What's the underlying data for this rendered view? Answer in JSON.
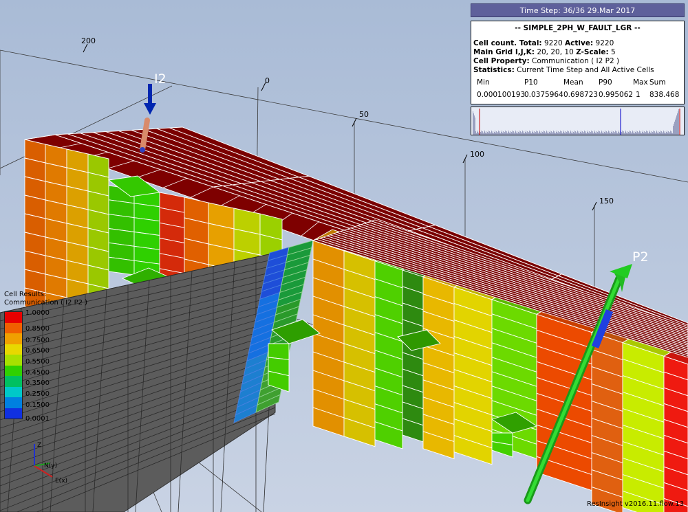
{
  "window": {
    "background_top": "#a9bbd6",
    "background_bottom": "#c9d3e4"
  },
  "axis_ticks": [
    "200",
    "0",
    "50",
    "100",
    "150"
  ],
  "wells": {
    "injector": "I2",
    "producer": "P2"
  },
  "timestep_label": "Time Step: 36/36 29.Mar 2017",
  "info": {
    "case_name": "-- SIMPLE_2PH_W_FAULT_LGR --",
    "cell_count_label": "Cell count. Total:",
    "cell_count_total": "9220",
    "active_label": "Active:",
    "active_value": "9220",
    "grid_label": "Main Grid I,J,K:",
    "grid_value": "20, 20, 10",
    "zscale_label": "Z-Scale:",
    "zscale_value": "5",
    "property_label": "Cell Property:",
    "property_value": "Communication ( I2 P2 )",
    "statistics_label": "Statistics:",
    "statistics_value": "Current Time Step and All Active Cells",
    "stats_headers": [
      "Min",
      "P10",
      "Mean",
      "P90",
      "Max",
      "Sum"
    ],
    "stats_values": [
      "0.000100193",
      "0.0375964",
      "0.698723",
      "0.995062",
      "1",
      "838.468"
    ]
  },
  "legend": {
    "title_line1": "Cell Results:",
    "title_line2": "Communication ( I2 P2 )",
    "labels": [
      "1.0000",
      "0.8500",
      "0.7500",
      "0.6500",
      "0.5500",
      "0.4500",
      "0.3500",
      "0.2500",
      "0.1500",
      "0.0001"
    ]
  },
  "axes_triad": {
    "z": "Z",
    "y": "N(y)",
    "x": "E(x)"
  },
  "version": "ResInsight v2016.11.flow.13"
}
